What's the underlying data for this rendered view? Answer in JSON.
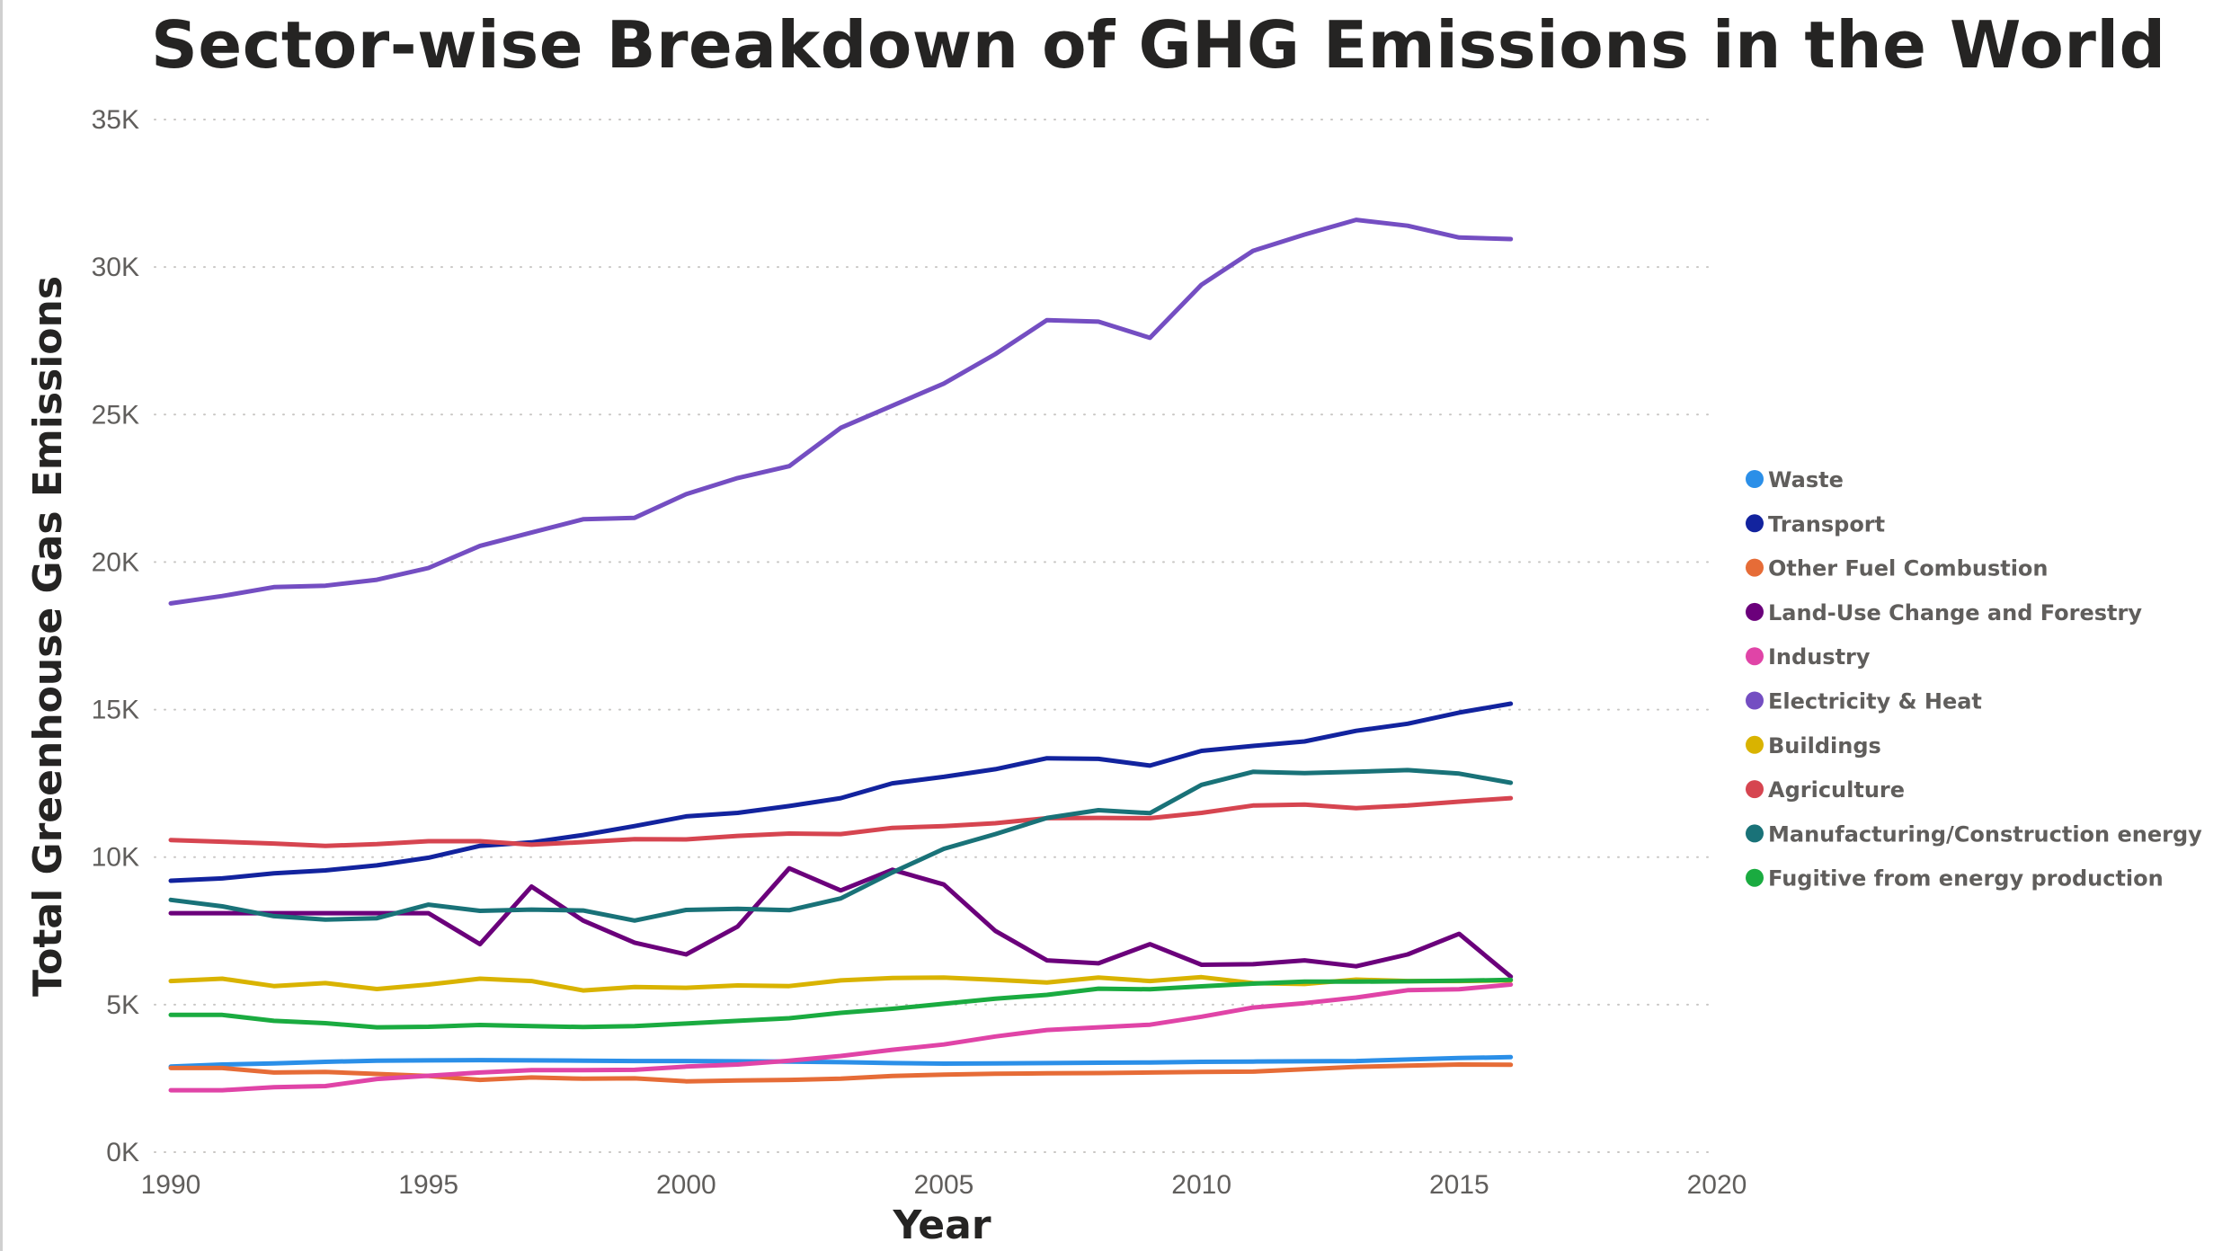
{
  "chart_data": {
    "type": "line",
    "title": "Sector-wise Breakdown of GHG Emissions in the World",
    "xlabel": "Year",
    "ylabel": "Total Greenhouse Gas Emissions",
    "xlim": [
      1990,
      2020
    ],
    "ylim": [
      0,
      35000
    ],
    "x_ticks": [
      1990,
      1995,
      2000,
      2005,
      2010,
      2015,
      2020
    ],
    "x_tick_labels": [
      "1990",
      "1995",
      "2000",
      "2005",
      "2010",
      "2015",
      "2020"
    ],
    "y_ticks": [
      0,
      5000,
      10000,
      15000,
      20000,
      25000,
      30000,
      35000
    ],
    "y_tick_labels": [
      "0K",
      "5K",
      "10K",
      "15K",
      "20K",
      "25K",
      "30K",
      "35K"
    ],
    "grid": "horizontal-dotted",
    "legend_position": "right",
    "x": [
      1990,
      1991,
      1992,
      1993,
      1994,
      1995,
      1996,
      1997,
      1998,
      1999,
      2000,
      2001,
      2002,
      2003,
      2004,
      2005,
      2006,
      2007,
      2008,
      2009,
      2010,
      2011,
      2012,
      2013,
      2014,
      2015,
      2016
    ],
    "series": [
      {
        "name": "Waste",
        "color": "#2b8fe8",
        "values": [
          2900,
          2970,
          3010,
          3060,
          3100,
          3110,
          3120,
          3110,
          3100,
          3090,
          3090,
          3080,
          3070,
          3050,
          3020,
          3000,
          3010,
          3020,
          3030,
          3040,
          3060,
          3070,
          3080,
          3090,
          3140,
          3190,
          3220
        ]
      },
      {
        "name": "Transport",
        "color": "#12239e",
        "values": [
          9200,
          9280,
          9450,
          9550,
          9720,
          9980,
          10380,
          10500,
          10750,
          11050,
          11380,
          11500,
          11730,
          12000,
          12500,
          12720,
          12980,
          13350,
          13330,
          13100,
          13600,
          13770,
          13920,
          14280,
          14520,
          14900,
          15200
        ]
      },
      {
        "name": "Other Fuel Combustion",
        "color": "#e66c37",
        "values": [
          2850,
          2850,
          2700,
          2720,
          2650,
          2580,
          2450,
          2530,
          2490,
          2500,
          2400,
          2430,
          2450,
          2490,
          2580,
          2630,
          2660,
          2670,
          2680,
          2700,
          2720,
          2730,
          2810,
          2890,
          2930,
          2970,
          2960
        ]
      },
      {
        "name": "Land-Use Change and Forestry",
        "color": "#6b007b",
        "values": [
          8100,
          8100,
          8100,
          8100,
          8100,
          8100,
          7050,
          9000,
          7850,
          7100,
          6700,
          7650,
          9620,
          8870,
          9570,
          9070,
          7500,
          6500,
          6400,
          7050,
          6350,
          6370,
          6500,
          6300,
          6700,
          7400,
          5950
        ]
      },
      {
        "name": "Industry",
        "color": "#e044a7",
        "values": [
          2100,
          2100,
          2200,
          2240,
          2480,
          2590,
          2700,
          2780,
          2780,
          2790,
          2900,
          2970,
          3100,
          3260,
          3470,
          3650,
          3920,
          4140,
          4230,
          4320,
          4590,
          4900,
          5050,
          5240,
          5490,
          5520,
          5680
        ]
      },
      {
        "name": "Electricity & Heat",
        "color": "#744ec2",
        "values": [
          18600,
          18850,
          19150,
          19200,
          19400,
          19800,
          20550,
          21000,
          21450,
          21500,
          22300,
          22850,
          23250,
          24550,
          25300,
          26050,
          27050,
          28200,
          28150,
          27600,
          29400,
          30550,
          31100,
          31600,
          31400,
          31000,
          30950
        ]
      },
      {
        "name": "Buildings",
        "color": "#d9b300",
        "values": [
          5800,
          5880,
          5630,
          5730,
          5530,
          5680,
          5880,
          5800,
          5480,
          5600,
          5570,
          5650,
          5630,
          5820,
          5900,
          5920,
          5840,
          5750,
          5920,
          5800,
          5930,
          5730,
          5700,
          5850,
          5800,
          5800,
          5820
        ]
      },
      {
        "name": "Agriculture",
        "color": "#d64550",
        "values": [
          10580,
          10520,
          10460,
          10380,
          10440,
          10540,
          10540,
          10420,
          10510,
          10610,
          10600,
          10720,
          10800,
          10780,
          10990,
          11050,
          11150,
          11320,
          11330,
          11320,
          11500,
          11750,
          11780,
          11660,
          11750,
          11880,
          12000
        ]
      },
      {
        "name": "Manufacturing/Construction energy",
        "color": "#197278",
        "values": [
          8550,
          8330,
          8000,
          7880,
          7930,
          8390,
          8180,
          8220,
          8190,
          7850,
          8210,
          8250,
          8200,
          8600,
          9480,
          10280,
          10780,
          11330,
          11590,
          11490,
          12450,
          12890,
          12850,
          12890,
          12950,
          12830,
          12520
        ]
      },
      {
        "name": "Fugitive from energy production",
        "color": "#1aab40",
        "values": [
          4650,
          4650,
          4450,
          4370,
          4230,
          4250,
          4310,
          4270,
          4240,
          4270,
          4360,
          4450,
          4540,
          4720,
          4860,
          5030,
          5200,
          5330,
          5540,
          5520,
          5620,
          5710,
          5780,
          5780,
          5790,
          5810,
          5840
        ]
      }
    ]
  }
}
